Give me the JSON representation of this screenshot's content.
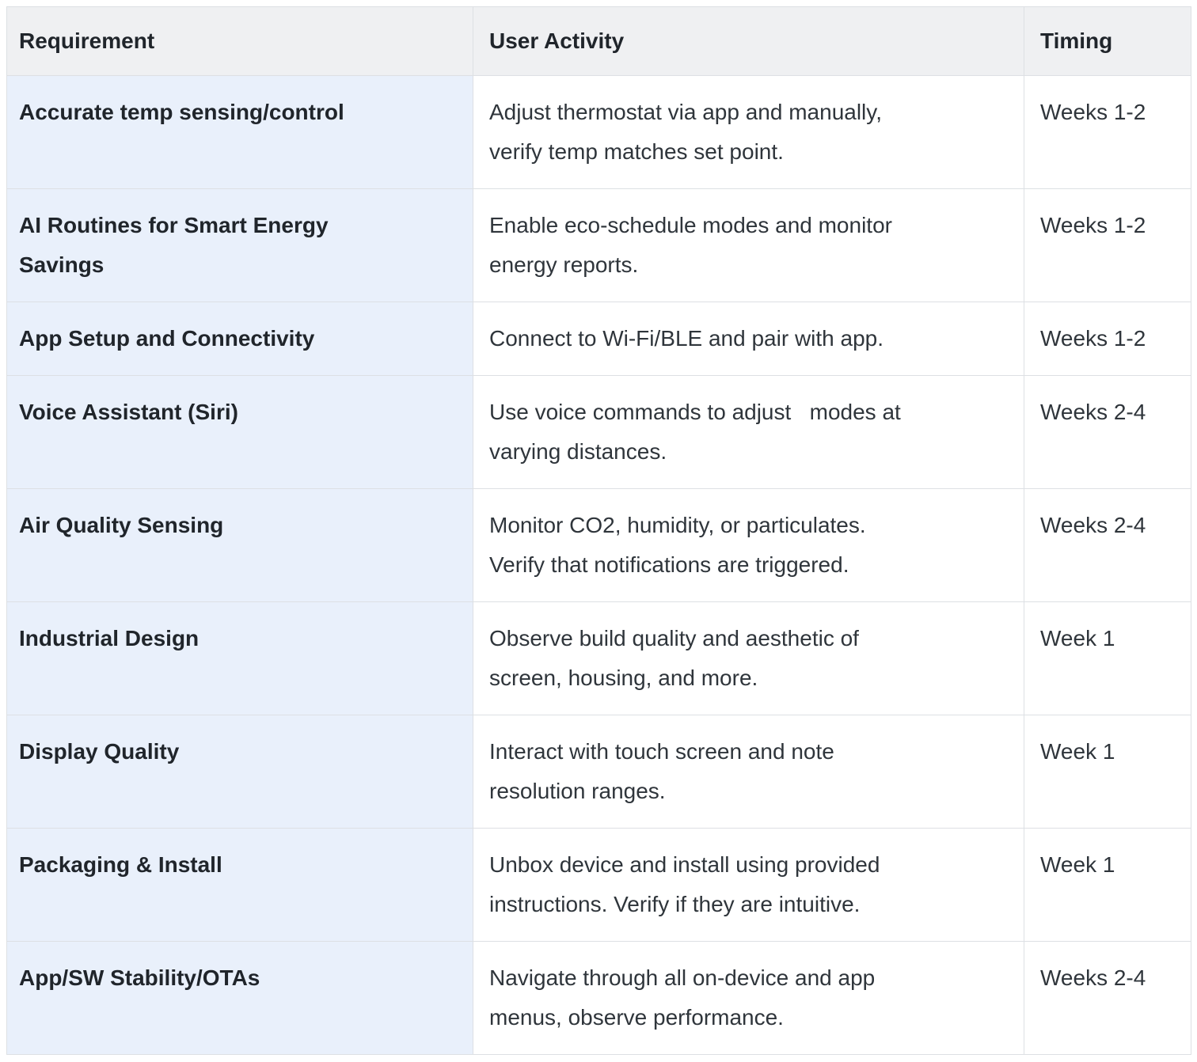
{
  "table": {
    "columns": [
      {
        "label": "Requirement"
      },
      {
        "label": "User Activity"
      },
      {
        "label": "Timing"
      }
    ],
    "rows": [
      {
        "requirement": "Accurate temp sensing/control",
        "activity": "Adjust thermostat via app and manually, verify temp matches set point.",
        "timing": "Weeks 1-2"
      },
      {
        "requirement": "AI Routines for Smart Energy Savings",
        "activity": "Enable eco-schedule modes and monitor energy reports.",
        "timing": "Weeks 1-2"
      },
      {
        "requirement": "App Setup and Connectivity",
        "activity": "Connect to Wi-Fi/BLE and pair with app.",
        "timing": "Weeks 1-2"
      },
      {
        "requirement": "Voice Assistant (Siri)",
        "activity": "Use voice commands to adjust   modes at varying distances.",
        "timing": "Weeks 2-4"
      },
      {
        "requirement": "Air Quality Sensing",
        "activity": "Monitor CO2, humidity, or particulates. Verify that notifications are triggered.",
        "timing": "Weeks 2-4"
      },
      {
        "requirement": "Industrial Design",
        "activity": "Observe build quality and aesthetic of screen, housing, and more.",
        "timing": "Week 1"
      },
      {
        "requirement": "Display Quality",
        "activity": "Interact with touch screen and note resolution ranges.",
        "timing": "Week 1"
      },
      {
        "requirement": "Packaging & Install",
        "activity": "Unbox device and install using provided instructions. Verify if they are intuitive.",
        "timing": "Week 1"
      },
      {
        "requirement": "App/SW Stability/OTAs",
        "activity": "Navigate through all on-device and app menus, observe performance.",
        "timing": "Weeks 2-4"
      }
    ]
  },
  "colors": {
    "header_bg": "#eff0f2",
    "requirement_column_bg": "#e9f0fb",
    "body_bg": "#ffffff",
    "border": "#dde0e4",
    "heading_text": "#20252b",
    "body_text": "#2f353b"
  }
}
